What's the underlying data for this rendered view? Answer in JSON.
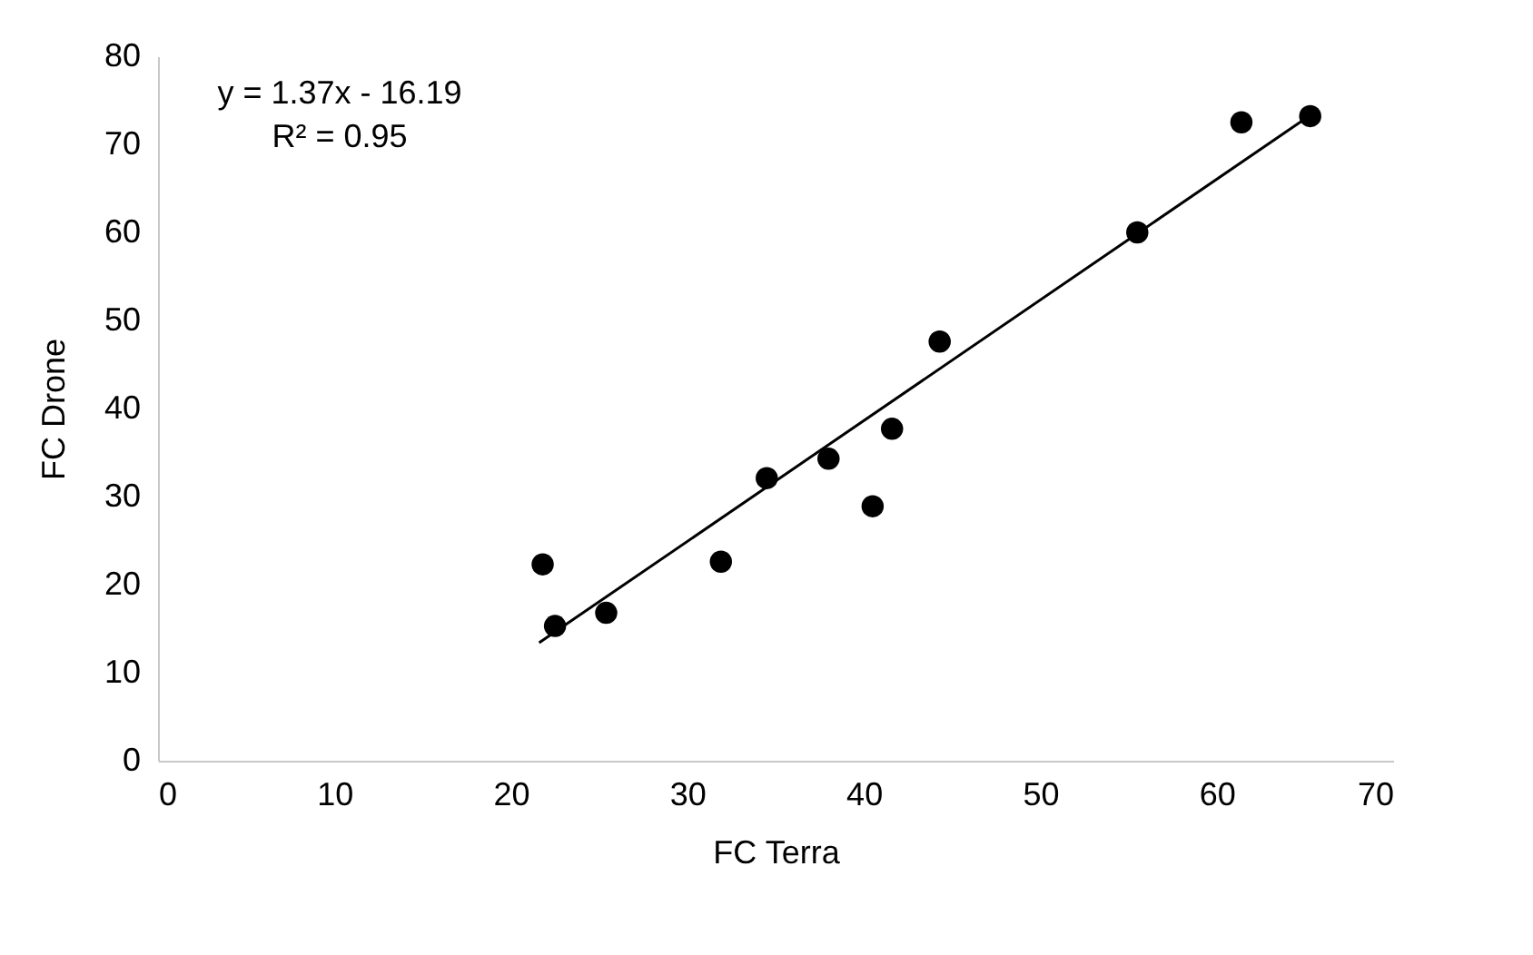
{
  "chart_data": {
    "type": "scatter",
    "xlabel": "FC Terra",
    "ylabel": "FC Drone",
    "xlim": [
      0,
      70
    ],
    "ylim": [
      0,
      80
    ],
    "xticks": [
      0,
      10,
      20,
      30,
      40,
      50,
      60,
      70
    ],
    "yticks": [
      0,
      10,
      20,
      30,
      40,
      50,
      60,
      70,
      80
    ],
    "annotations": [
      "y = 1.37x - 16.19",
      "R² = 0.95"
    ],
    "series": [
      {
        "type": "scatter",
        "marker": "circle",
        "color": "#000000",
        "x": [
          21.8,
          22.5,
          25.4,
          31.9,
          34.5,
          38.0,
          40.5,
          41.6,
          44.3,
          55.5,
          61.4,
          65.3
        ],
        "values": [
          22.3,
          15.3,
          16.8,
          22.6,
          32.1,
          34.3,
          28.9,
          37.7,
          47.6,
          60.0,
          72.5,
          73.2
        ]
      },
      {
        "type": "line",
        "color": "#000000",
        "x": [
          21.6,
          65.3
        ],
        "values": [
          13.4,
          73.3
        ]
      }
    ]
  }
}
